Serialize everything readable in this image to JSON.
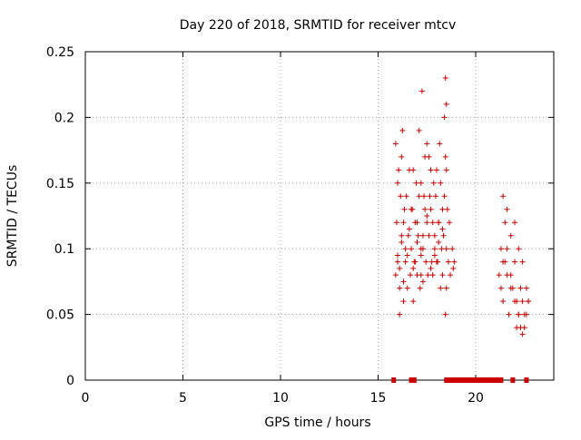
{
  "chart_data": {
    "type": "scatter",
    "title": "Day 220 of 2018, SRMTID for receiver mtcv",
    "xlabel": "GPS time / hours",
    "ylabel": "SRMTID / TECUs",
    "xlim": [
      0,
      24
    ],
    "ylim": [
      0,
      0.25
    ],
    "xticks": [
      0,
      5,
      10,
      15,
      20
    ],
    "yticks": [
      0,
      0.05,
      0.1,
      0.15,
      0.2,
      0.25
    ],
    "xtick_labels": [
      "0",
      "5",
      "10",
      "15",
      "20"
    ],
    "ytick_labels": [
      "0",
      "0.05",
      "0.1",
      "0.15",
      "0.2",
      "0.25"
    ],
    "grid": true,
    "legend": "none",
    "series": [
      {
        "name": "SRMTID",
        "marker": "plus",
        "color": "#cc0000",
        "x": [
          15.9,
          15.95,
          16.0,
          16.05,
          16.1,
          16.15,
          16.2,
          16.25,
          16.3,
          16.35,
          16.4,
          15.9,
          16.0,
          16.1,
          16.2,
          16.3,
          16.4,
          16.45,
          16.5,
          16.55,
          16.6,
          16.65,
          16.7,
          16.75,
          16.8,
          16.85,
          16.9,
          16.95,
          17.0,
          17.05,
          17.1,
          17.15,
          17.2,
          16.7,
          16.8,
          16.9,
          17.0,
          17.1,
          17.2,
          17.25,
          17.3,
          17.35,
          17.4,
          17.45,
          17.5,
          17.2,
          17.3,
          17.4,
          17.5,
          17.55,
          17.6,
          17.65,
          17.7,
          17.75,
          17.8,
          17.85,
          17.9,
          17.6,
          17.7,
          17.8,
          17.9,
          17.95,
          18.0,
          18.05,
          18.1,
          18.15,
          18.2,
          18.25,
          18.3,
          18.0,
          18.1,
          18.2,
          18.3,
          18.35,
          18.4,
          18.45,
          18.5,
          18.55,
          18.6,
          18.65,
          18.7,
          18.4,
          18.5,
          18.45,
          18.45,
          18.5,
          18.5,
          18.8,
          18.9,
          18.85,
          16.0,
          16.1,
          16.2,
          16.3,
          16.5,
          16.6,
          16.8,
          17.0,
          17.2,
          17.3,
          17.5,
          17.7,
          17.9,
          18.1,
          18.3,
          21.2,
          21.3,
          21.4,
          21.5,
          21.6,
          21.7,
          21.8,
          21.9,
          22.0,
          22.1,
          22.2,
          22.3,
          22.4,
          22.5,
          22.6,
          22.7,
          21.3,
          21.4,
          21.5,
          21.6,
          21.8,
          22.0,
          22.1,
          22.2,
          22.3,
          22.4,
          22.5,
          22.6,
          22.7,
          21.4,
          21.6,
          21.8,
          22.0,
          22.2,
          22.4
        ],
        "y": [
          0.18,
          0.12,
          0.09,
          0.16,
          0.07,
          0.14,
          0.11,
          0.19,
          0.06,
          0.13,
          0.1,
          0.08,
          0.15,
          0.05,
          0.17,
          0.12,
          0.09,
          0.14,
          0.07,
          0.11,
          0.16,
          0.08,
          0.1,
          0.13,
          0.06,
          0.09,
          0.12,
          0.15,
          0.08,
          0.11,
          0.14,
          0.07,
          0.1,
          0.13,
          0.16,
          0.09,
          0.12,
          0.19,
          0.08,
          0.22,
          0.11,
          0.14,
          0.17,
          0.09,
          0.12,
          0.15,
          0.1,
          0.13,
          0.18,
          0.08,
          0.11,
          0.14,
          0.16,
          0.09,
          0.12,
          0.15,
          0.1,
          0.17,
          0.13,
          0.08,
          0.11,
          0.14,
          0.16,
          0.09,
          0.12,
          0.18,
          0.07,
          0.1,
          0.13,
          0.09,
          0.12,
          0.15,
          0.08,
          0.11,
          0.14,
          0.17,
          0.1,
          0.13,
          0.09,
          0.12,
          0.08,
          0.2,
          0.21,
          0.23,
          0.05,
          0.07,
          0.16,
          0.1,
          0.09,
          0.085,
          0.095,
          0.085,
          0.105,
          0.075,
          0.095,
          0.115,
          0.085,
          0.105,
          0.095,
          0.075,
          0.125,
          0.085,
          0.095,
          0.105,
          0.115,
          0.08,
          0.07,
          0.06,
          0.09,
          0.1,
          0.05,
          0.08,
          0.07,
          0.06,
          0.04,
          0.05,
          0.07,
          0.06,
          0.05,
          0.07,
          0.06,
          0.1,
          0.09,
          0.12,
          0.08,
          0.07,
          0.09,
          0.06,
          0.05,
          0.04,
          0.035,
          0.04,
          0.05,
          0.06,
          0.14,
          0.13,
          0.11,
          0.12,
          0.1,
          0.09
        ]
      }
    ],
    "zero_markers_x": [
      15.8,
      16.7,
      16.85,
      18.5,
      18.6,
      18.7,
      18.8,
      18.9,
      19.0,
      19.1,
      19.2,
      19.3,
      19.4,
      19.5,
      19.6,
      19.7,
      19.8,
      19.9,
      20.0,
      20.1,
      20.2,
      20.3,
      20.4,
      20.5,
      20.6,
      20.7,
      20.8,
      20.9,
      21.0,
      21.1,
      21.2,
      21.3,
      21.9,
      22.6
    ]
  }
}
